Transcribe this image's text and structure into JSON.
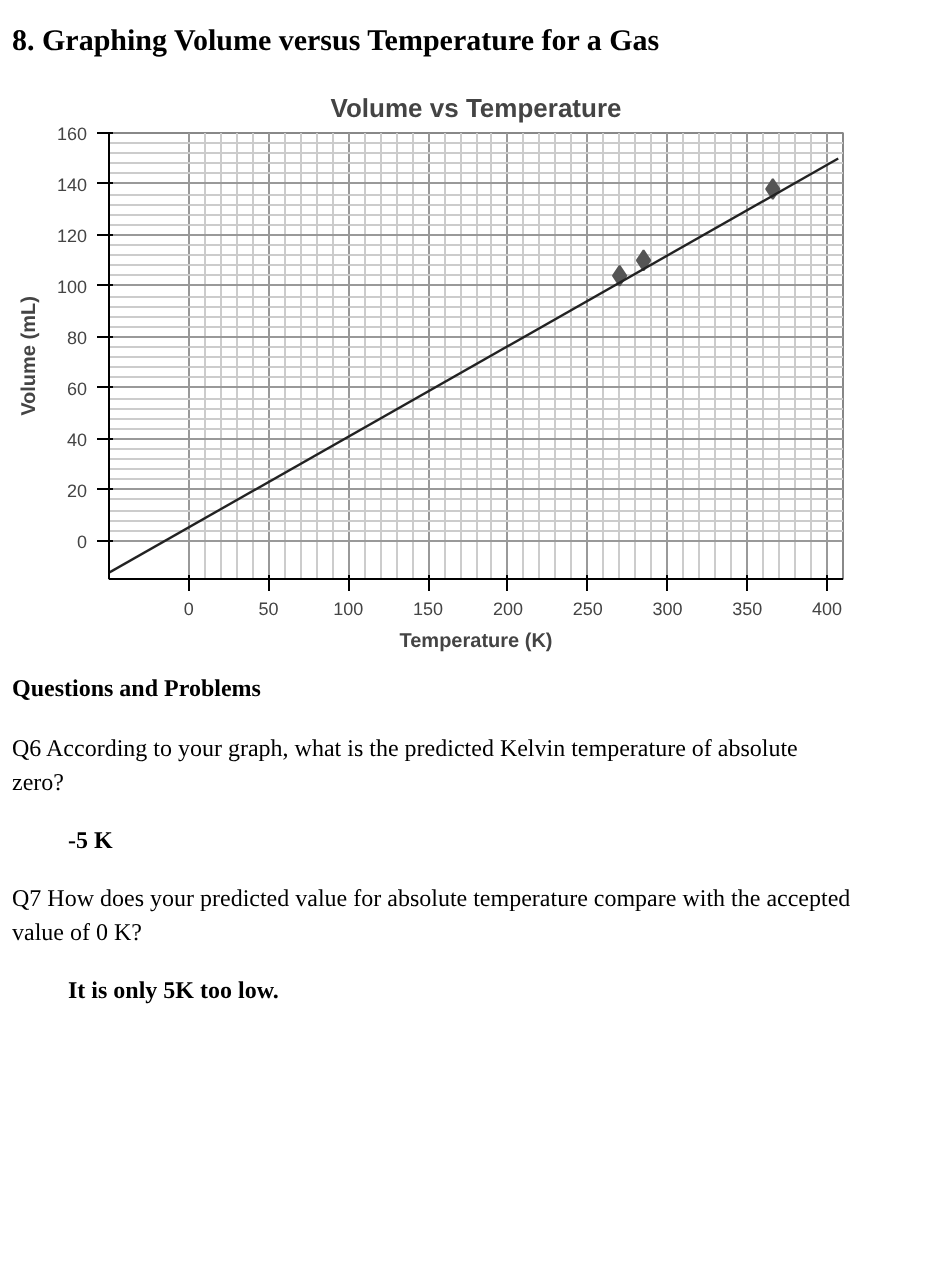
{
  "chart_data": {
    "type": "scatter",
    "title": "Volume vs Temperature",
    "xlabel": "Temperature (K)",
    "ylabel": "Volume (mL)",
    "annotations": [
      "8. Graphing Volume versus Temperature for a Gas",
      "Questions and Problems",
      "Q6 According to your graph, what is the predicted Kelvin temperature of absolute zero?",
      "-5 K",
      "Q7 How does your predicted value for absolute temperature compare with the accepted value of 0 K?",
      "It is only 5K too low."
    ],
    "xlim": [
      -50,
      410
    ],
    "ylim": [
      -15,
      160
    ],
    "xticks": [
      0,
      50,
      100,
      150,
      200,
      250,
      300,
      350,
      400
    ],
    "yticks": [
      0,
      20,
      40,
      60,
      80,
      100,
      120,
      140,
      160
    ],
    "grid": true,
    "marker": "diamond",
    "series": [
      {
        "color": "#555555",
        "x": [
          270,
          285,
          366
        ],
        "values": [
          104,
          110,
          138
        ]
      },
      {
        "type": "line",
        "color": "#222222",
        "x": [
          -50,
          407
        ],
        "values": [
          -12.5,
          150
        ],
        "marker": "none",
        "line_style": "solid"
      }
    ]
  }
}
